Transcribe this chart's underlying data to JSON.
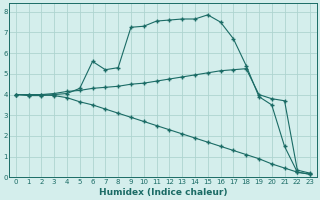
{
  "xlabel": "Humidex (Indice chaleur)",
  "bg_color": "#d4eeec",
  "grid_color": "#aed4d0",
  "line_color": "#1a6b65",
  "xlim": [
    -0.5,
    23.5
  ],
  "ylim": [
    0,
    8.4
  ],
  "xticks": [
    0,
    1,
    2,
    3,
    4,
    5,
    6,
    7,
    8,
    9,
    10,
    11,
    12,
    13,
    14,
    15,
    16,
    17,
    18,
    19,
    20,
    21,
    22,
    23
  ],
  "yticks": [
    0,
    1,
    2,
    3,
    4,
    5,
    6,
    7,
    8
  ],
  "curve_top_x": [
    0,
    1,
    2,
    3,
    4,
    5,
    6,
    7,
    8,
    9,
    10,
    11,
    12,
    13,
    14,
    15,
    16,
    17,
    18,
    19,
    20,
    21,
    22,
    23
  ],
  "curve_top_y": [
    4.0,
    3.95,
    3.95,
    4.0,
    4.05,
    4.3,
    5.6,
    5.2,
    5.3,
    7.25,
    7.3,
    7.55,
    7.6,
    7.65,
    7.65,
    7.85,
    7.5,
    6.7,
    5.4,
    3.9,
    3.5,
    1.5,
    0.25,
    0.15
  ],
  "curve_mid_x": [
    0,
    1,
    2,
    3,
    4,
    5,
    6,
    7,
    8,
    9,
    10,
    11,
    12,
    13,
    14,
    15,
    16,
    17,
    18,
    19,
    20,
    21,
    22,
    23
  ],
  "curve_mid_y": [
    4.0,
    4.0,
    4.0,
    4.05,
    4.15,
    4.2,
    4.3,
    4.35,
    4.4,
    4.5,
    4.55,
    4.65,
    4.75,
    4.85,
    4.95,
    5.05,
    5.15,
    5.2,
    5.25,
    4.0,
    3.8,
    3.7,
    0.35,
    0.2
  ],
  "curve_bot_x": [
    0,
    1,
    2,
    3,
    4,
    5,
    6,
    7,
    8,
    9,
    10,
    11,
    12,
    13,
    14,
    15,
    16,
    17,
    18,
    19,
    20,
    21,
    22,
    23
  ],
  "curve_bot_y": [
    4.0,
    4.0,
    4.0,
    3.95,
    3.85,
    3.65,
    3.5,
    3.3,
    3.1,
    2.9,
    2.7,
    2.5,
    2.3,
    2.1,
    1.9,
    1.7,
    1.5,
    1.3,
    1.1,
    0.9,
    0.65,
    0.45,
    0.25,
    0.15
  ]
}
